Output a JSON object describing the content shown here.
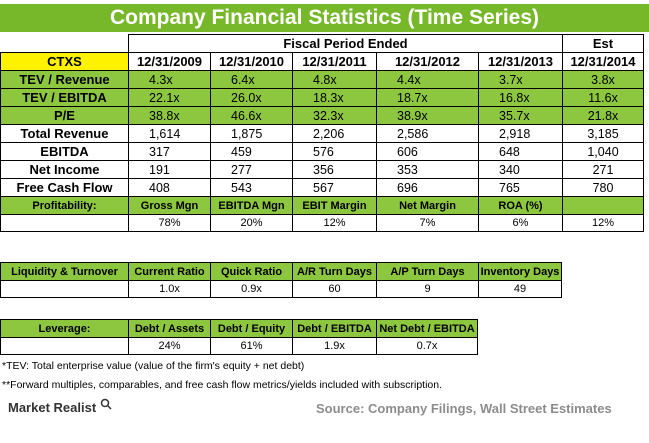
{
  "title": "Company Financial Statistics (Time Series)",
  "fiscal_header": "Fiscal Period Ended",
  "est_header": "Est",
  "ticker": "CTXS",
  "periods": [
    "12/31/2009",
    "12/31/2010",
    "12/31/2011",
    "12/31/2012",
    "12/31/2013",
    "12/31/2014"
  ],
  "main_rows": [
    {
      "label": "TEV / Revenue",
      "values": [
        "4.3x",
        "6.4x",
        "4.8x",
        "4.4x",
        "3.7x",
        "3.8x"
      ]
    },
    {
      "label": "TEV / EBITDA",
      "values": [
        "22.1x",
        "26.0x",
        "18.3x",
        "18.7x",
        "16.8x",
        "11.6x"
      ]
    },
    {
      "label": "P/E",
      "values": [
        "38.8x",
        "46.6x",
        "32.3x",
        "38.9x",
        "35.7x",
        "21.8x"
      ]
    },
    {
      "label": "Total Revenue",
      "values": [
        "1,614",
        "1,875",
        "2,206",
        "2,586",
        "2,918",
        "3,185"
      ]
    },
    {
      "label": "EBITDA",
      "values": [
        "317",
        "459",
        "576",
        "606",
        "648",
        "1,040"
      ]
    },
    {
      "label": "Net Income",
      "values": [
        "191",
        "277",
        "356",
        "353",
        "340",
        "271"
      ]
    },
    {
      "label": "Free Cash Flow",
      "values": [
        "408",
        "543",
        "567",
        "696",
        "765",
        "780"
      ]
    }
  ],
  "profitability": {
    "label": "Profitability:",
    "headers": [
      "Gross Mgn",
      "EBITDA Mgn",
      "EBIT Margin",
      "Net Margin",
      "ROA (%)",
      ""
    ],
    "values": [
      "78%",
      "20%",
      "12%",
      "7%",
      "6%",
      "12%"
    ]
  },
  "liquidity": {
    "label": "Liquidity & Turnover",
    "headers": [
      "Current Ratio",
      "Quick Ratio",
      "A/R Turn Days",
      "A/P Turn Days",
      "Inventory Days"
    ],
    "values": [
      "1.0x",
      "0.9x",
      "60",
      "9",
      "49"
    ]
  },
  "leverage": {
    "label": "Leverage:",
    "headers": [
      "Debt / Assets",
      "Debt / Equity",
      "Debt / EBITDA",
      "Net Debt / EBITDA"
    ],
    "values": [
      "24%",
      "61%",
      "1.9x",
      "0.7x"
    ]
  },
  "footnotes": [
    "*TEV: Total enterprise value (value of the firm's equity + net debt)",
    "**Forward multiples, comparables, and free cash flow metrics/yields included with subscription."
  ],
  "brand": "Market Realist",
  "source": "Source: Company Filings, Wall Street Estimates"
}
